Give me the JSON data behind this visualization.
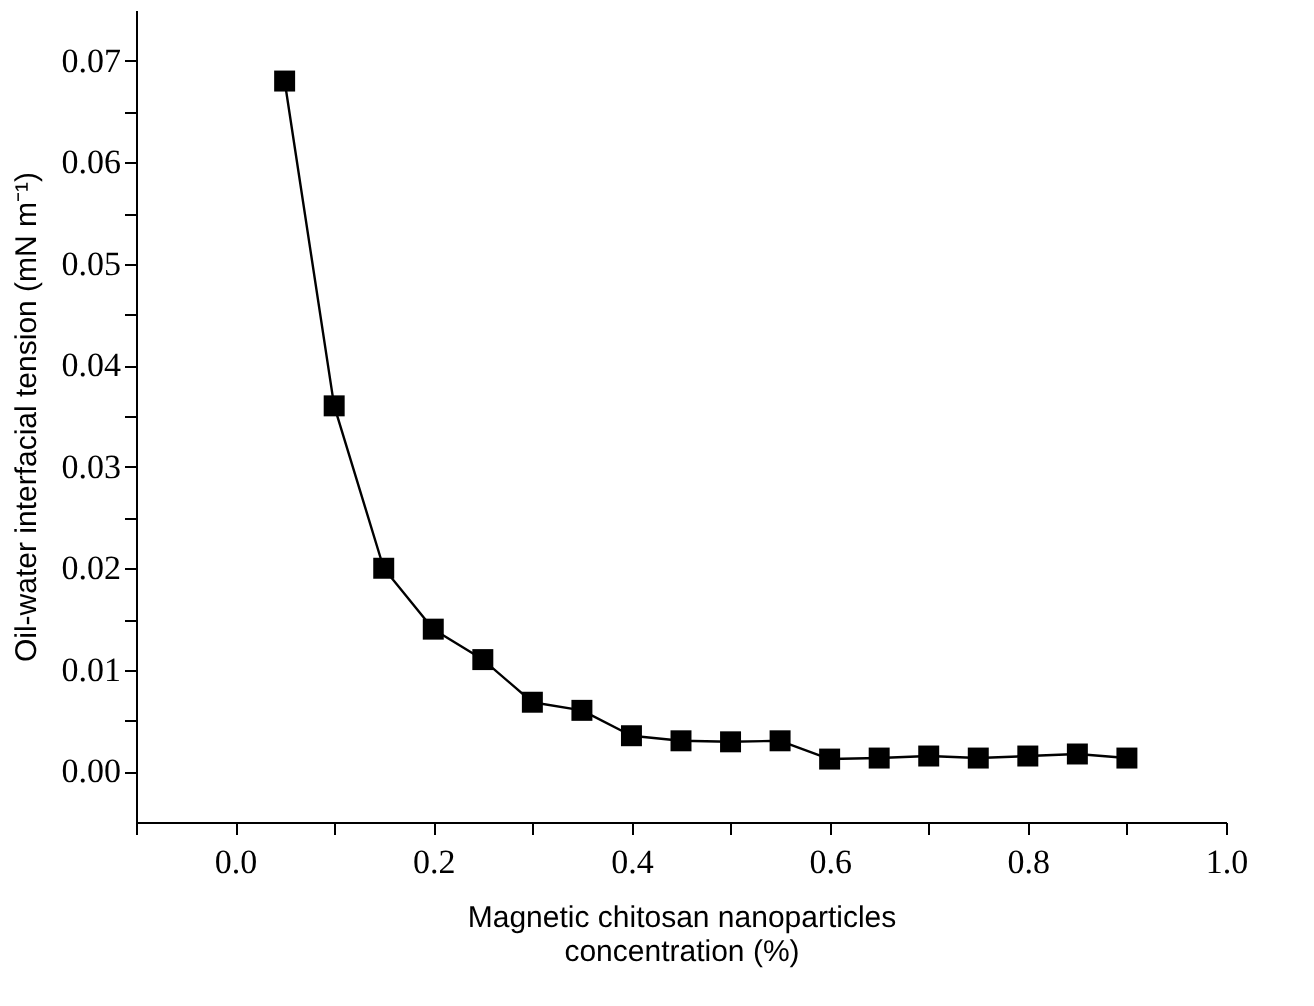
{
  "chart_data": {
    "type": "line",
    "xlabel": "Magnetic chitosan nanoparticles\nconcentration (%)",
    "ylabel": "Oil-water interfacial tension (mN m⁻¹)",
    "x": [
      0.05,
      0.1,
      0.15,
      0.2,
      0.25,
      0.3,
      0.35,
      0.4,
      0.45,
      0.5,
      0.55,
      0.6,
      0.65,
      0.7,
      0.75,
      0.8,
      0.85,
      0.9
    ],
    "series": [
      {
        "color": "#000000",
        "values": [
          0.068,
          0.036,
          0.02,
          0.014,
          0.011,
          0.0068,
          0.006,
          0.0035,
          0.003,
          0.0029,
          0.003,
          0.0012,
          0.0013,
          0.0015,
          0.0013,
          0.0015,
          0.0017,
          0.0013
        ]
      }
    ],
    "xlim": [
      -0.1,
      1.0
    ],
    "xticks": [
      {
        "value": -0.1,
        "label": null
      },
      "0.0",
      {
        "value": 0.1,
        "label": null
      },
      0.2,
      {
        "value": 0.3,
        "label": null
      },
      0.4,
      {
        "value": 0.5,
        "label": null
      },
      0.6,
      {
        "value": 0.7,
        "label": null
      },
      0.8,
      {
        "value": 0.9,
        "label": null
      },
      "1.0"
    ],
    "ylim": [
      -0.005,
      0.075
    ],
    "yticks": [
      "0.00",
      {
        "value": 0.005,
        "label": null
      },
      0.01,
      {
        "value": 0.015,
        "label": null
      },
      0.02,
      {
        "value": 0.025,
        "label": null
      },
      0.03,
      {
        "value": 0.035,
        "label": null
      },
      0.04,
      {
        "value": 0.045,
        "label": null
      },
      0.05,
      {
        "value": 0.055,
        "label": null
      },
      0.06,
      {
        "value": 0.065,
        "label": null
      },
      0.07
    ],
    "grid": false,
    "marker": "square",
    "line_style": "solid"
  }
}
